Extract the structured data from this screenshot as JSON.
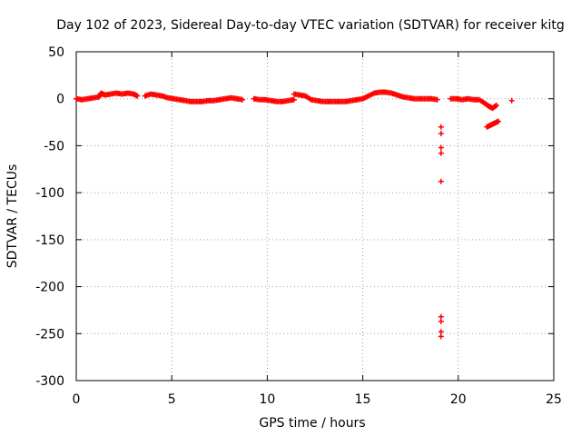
{
  "chart_data": {
    "type": "scatter",
    "title": "Day 102 of 2023, Sidereal Day-to-day VTEC variation (SDTVAR) for receiver kitg",
    "xlabel": "GPS time / hours",
    "ylabel": "SDTVAR / TECUs",
    "xlim": [
      0,
      25
    ],
    "ylim": [
      -300,
      50
    ],
    "xticks": [
      0,
      5,
      10,
      15,
      20,
      25
    ],
    "yticks": [
      50,
      0,
      -50,
      -100,
      -150,
      -200,
      -250,
      -300
    ],
    "grid": true,
    "marker": "plus",
    "color": "#ff0000",
    "series": [
      {
        "name": "SDTVAR",
        "points": [
          [
            0.0,
            0
          ],
          [
            0.3,
            -1
          ],
          [
            0.6,
            0
          ],
          [
            0.9,
            1
          ],
          [
            1.2,
            2
          ],
          [
            1.3,
            6
          ],
          [
            1.5,
            4
          ],
          [
            1.8,
            5
          ],
          [
            2.1,
            6
          ],
          [
            2.4,
            5
          ],
          [
            2.7,
            6
          ],
          [
            3.0,
            5
          ],
          [
            3.2,
            3
          ],
          [
            3.6,
            3
          ],
          [
            3.9,
            5
          ],
          [
            4.2,
            4
          ],
          [
            4.5,
            3
          ],
          [
            4.8,
            1
          ],
          [
            5.1,
            0
          ],
          [
            5.4,
            -1
          ],
          [
            5.7,
            -2
          ],
          [
            6.0,
            -3
          ],
          [
            6.3,
            -3
          ],
          [
            6.6,
            -3
          ],
          [
            6.9,
            -2
          ],
          [
            7.2,
            -2
          ],
          [
            7.5,
            -1
          ],
          [
            7.8,
            0
          ],
          [
            8.1,
            1
          ],
          [
            8.4,
            0
          ],
          [
            8.7,
            -1
          ],
          [
            9.3,
            0
          ],
          [
            9.6,
            -1
          ],
          [
            9.9,
            -1
          ],
          [
            10.2,
            -2
          ],
          [
            10.5,
            -3
          ],
          [
            10.8,
            -3
          ],
          [
            11.1,
            -2
          ],
          [
            11.4,
            -1
          ],
          [
            11.4,
            5
          ],
          [
            11.7,
            4
          ],
          [
            12.0,
            3
          ],
          [
            12.3,
            -1
          ],
          [
            12.6,
            -2
          ],
          [
            12.9,
            -3
          ],
          [
            13.2,
            -3
          ],
          [
            13.5,
            -3
          ],
          [
            13.8,
            -3
          ],
          [
            14.1,
            -3
          ],
          [
            14.4,
            -2
          ],
          [
            14.7,
            -1
          ],
          [
            15.0,
            0
          ],
          [
            15.3,
            3
          ],
          [
            15.6,
            6
          ],
          [
            15.9,
            7
          ],
          [
            16.2,
            7
          ],
          [
            16.5,
            6
          ],
          [
            16.8,
            4
          ],
          [
            17.1,
            2
          ],
          [
            17.4,
            1
          ],
          [
            17.7,
            0
          ],
          [
            18.0,
            0
          ],
          [
            18.3,
            0
          ],
          [
            18.6,
            0
          ],
          [
            18.9,
            -1
          ],
          [
            19.1,
            -30
          ],
          [
            19.1,
            -37
          ],
          [
            19.1,
            -52
          ],
          [
            19.1,
            -58
          ],
          [
            19.1,
            -88
          ],
          [
            19.1,
            -232
          ],
          [
            19.1,
            -237
          ],
          [
            19.1,
            -248
          ],
          [
            19.1,
            -253
          ],
          [
            19.6,
            0
          ],
          [
            19.9,
            0
          ],
          [
            20.2,
            -1
          ],
          [
            20.5,
            0
          ],
          [
            20.8,
            -1
          ],
          [
            21.1,
            -1
          ],
          [
            21.4,
            -5
          ],
          [
            21.6,
            -8
          ],
          [
            21.8,
            -10
          ],
          [
            22.0,
            -7
          ],
          [
            21.5,
            -30
          ],
          [
            21.7,
            -28
          ],
          [
            21.9,
            -26
          ],
          [
            22.1,
            -24
          ],
          [
            22.8,
            -2
          ]
        ]
      }
    ]
  }
}
